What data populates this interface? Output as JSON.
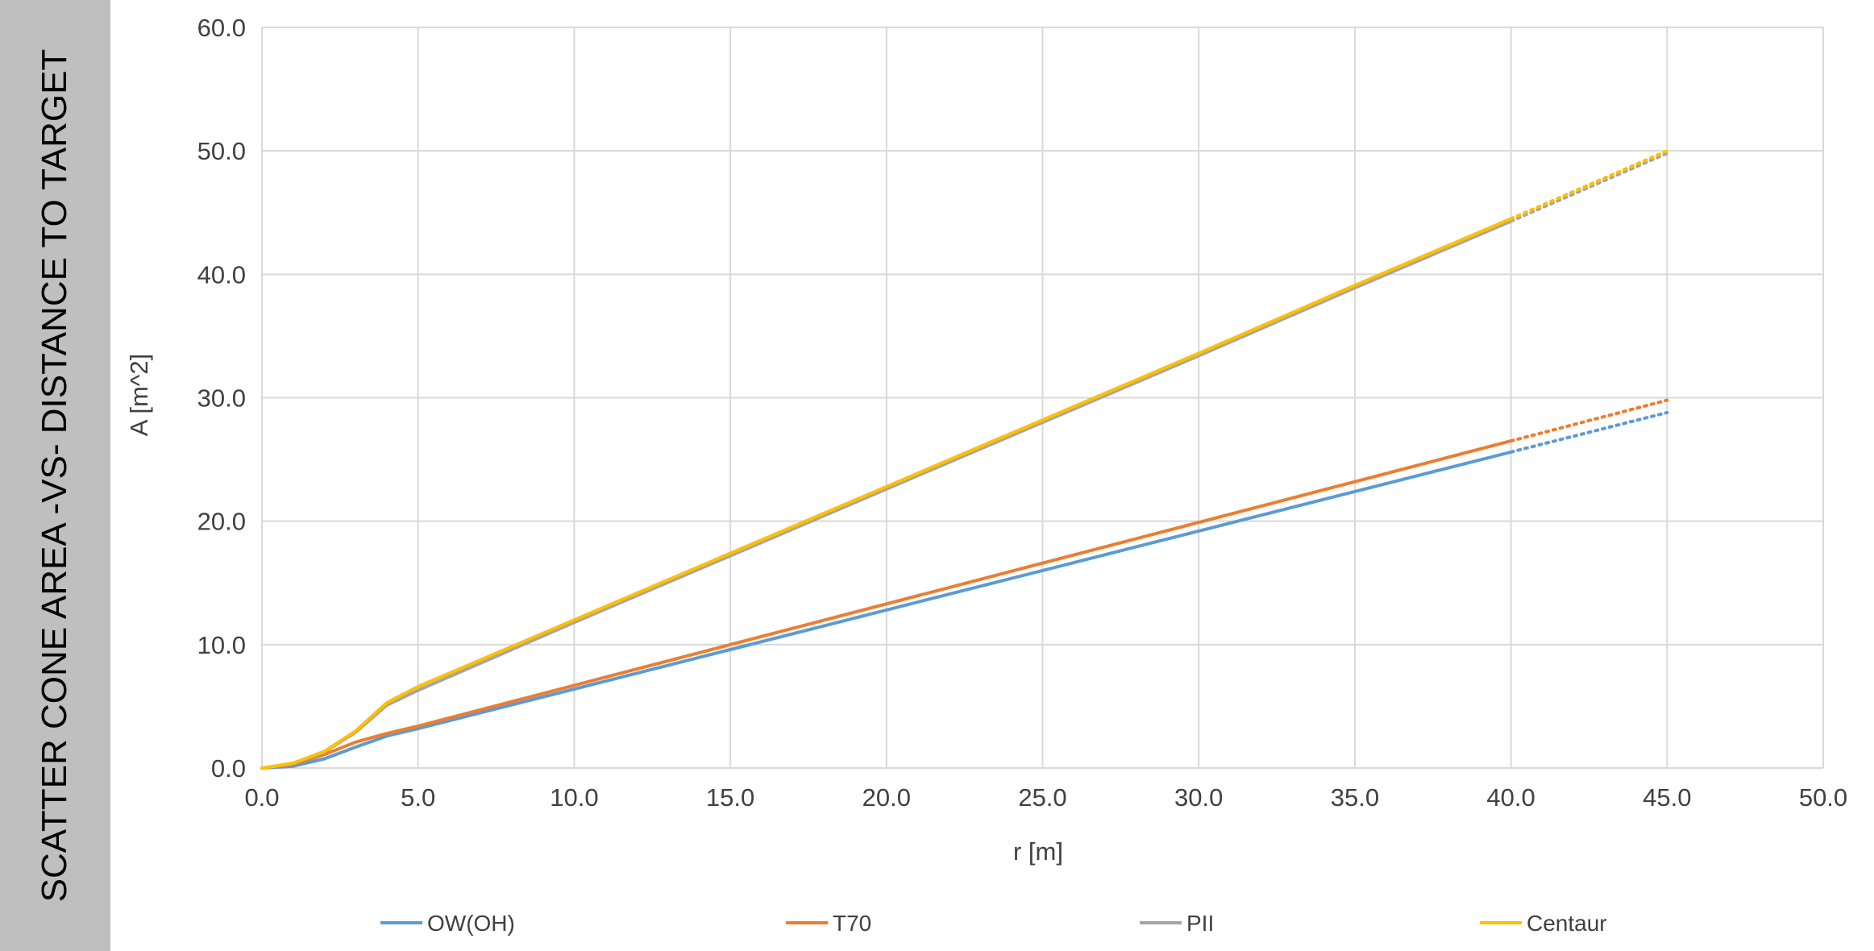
{
  "side_title": "SCATTER CONE AREA -VS- DISTANCE TO TARGET",
  "colors": {
    "side_panel": "#bfbfbf",
    "grid": "#d9d9d9",
    "axis_text": "#404040"
  },
  "chart_data": {
    "type": "line",
    "title": "SCATTER CONE AREA -VS- DISTANCE TO TARGET",
    "xlabel": "r [m]",
    "ylabel": "A [m^2]",
    "xlim": [
      0,
      50
    ],
    "ylim": [
      0,
      60
    ],
    "x_ticks": [
      "0.0",
      "5.0",
      "10.0",
      "15.0",
      "20.0",
      "25.0",
      "30.0",
      "35.0",
      "40.0",
      "45.0",
      "50.0"
    ],
    "y_ticks": [
      "0.0",
      "10.0",
      "20.0",
      "30.0",
      "40.0",
      "50.0",
      "60.0"
    ],
    "grid": true,
    "legend_position": "bottom",
    "series": [
      {
        "name": "OW(OH)",
        "color": "#5b9bd5",
        "x": [
          0,
          1,
          2,
          3,
          4,
          5,
          10,
          15,
          20,
          25,
          30,
          35,
          40
        ],
        "y": [
          0,
          0.15,
          0.75,
          1.7,
          2.6,
          3.2,
          6.4,
          9.6,
          12.8,
          16.0,
          19.2,
          22.4,
          25.6
        ],
        "projection": {
          "x": [
            40,
            45
          ],
          "y": [
            25.6,
            28.8
          ]
        }
      },
      {
        "name": "T70",
        "color": "#ed7d31",
        "x": [
          0,
          1,
          2,
          3,
          4,
          5,
          10,
          15,
          20,
          25,
          30,
          35,
          40
        ],
        "y": [
          0,
          0.3,
          1.1,
          2.1,
          2.8,
          3.4,
          6.7,
          10.0,
          13.3,
          16.6,
          19.9,
          23.2,
          26.5
        ],
        "projection": {
          "x": [
            40,
            45
          ],
          "y": [
            26.5,
            29.8
          ]
        }
      },
      {
        "name": "PII",
        "color": "#a5a5a5",
        "x": [
          0,
          1,
          2,
          3,
          4,
          5,
          10,
          15,
          20,
          25,
          30,
          35,
          40
        ],
        "y": [
          0,
          0.35,
          1.3,
          2.9,
          5.1,
          6.3,
          11.8,
          17.2,
          22.6,
          28.0,
          33.4,
          38.9,
          44.3
        ],
        "projection": {
          "x": [
            40,
            45
          ],
          "y": [
            44.3,
            49.8
          ]
        }
      },
      {
        "name": "Centaur",
        "color": "#ffc000",
        "x": [
          0,
          1,
          2,
          3,
          4,
          5,
          10,
          15,
          20,
          25,
          30,
          35,
          40
        ],
        "y": [
          0,
          0.4,
          1.35,
          3.0,
          5.3,
          6.6,
          12.0,
          17.4,
          22.8,
          28.2,
          33.6,
          39.1,
          44.5
        ],
        "projection": {
          "x": [
            40,
            45
          ],
          "y": [
            44.5,
            50.0
          ]
        }
      }
    ]
  }
}
